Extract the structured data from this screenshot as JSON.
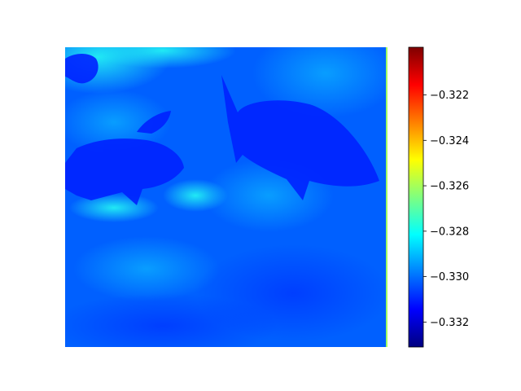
{
  "chart_data": {
    "type": "heatmap",
    "title": "",
    "xlabel": "",
    "ylabel": "",
    "image_content": "underwater scene with rockfish over a reef, rendered through a jet colormap",
    "colormap": "jet",
    "colormap_stops": [
      "#00007f",
      "#0000ff",
      "#007fff",
      "#00ffff",
      "#7fff7f",
      "#ffff00",
      "#ff7f00",
      "#ff0000",
      "#7f0000"
    ],
    "colorbar": {
      "vmin": -0.3331,
      "vmax": -0.3199,
      "ticks": [
        -0.332,
        -0.33,
        -0.328,
        -0.326,
        -0.324,
        -0.322
      ],
      "tick_labels": [
        "−0.332",
        "−0.330",
        "−0.328",
        "−0.326",
        "−0.324",
        "−0.322"
      ]
    },
    "axes_visible": false
  }
}
